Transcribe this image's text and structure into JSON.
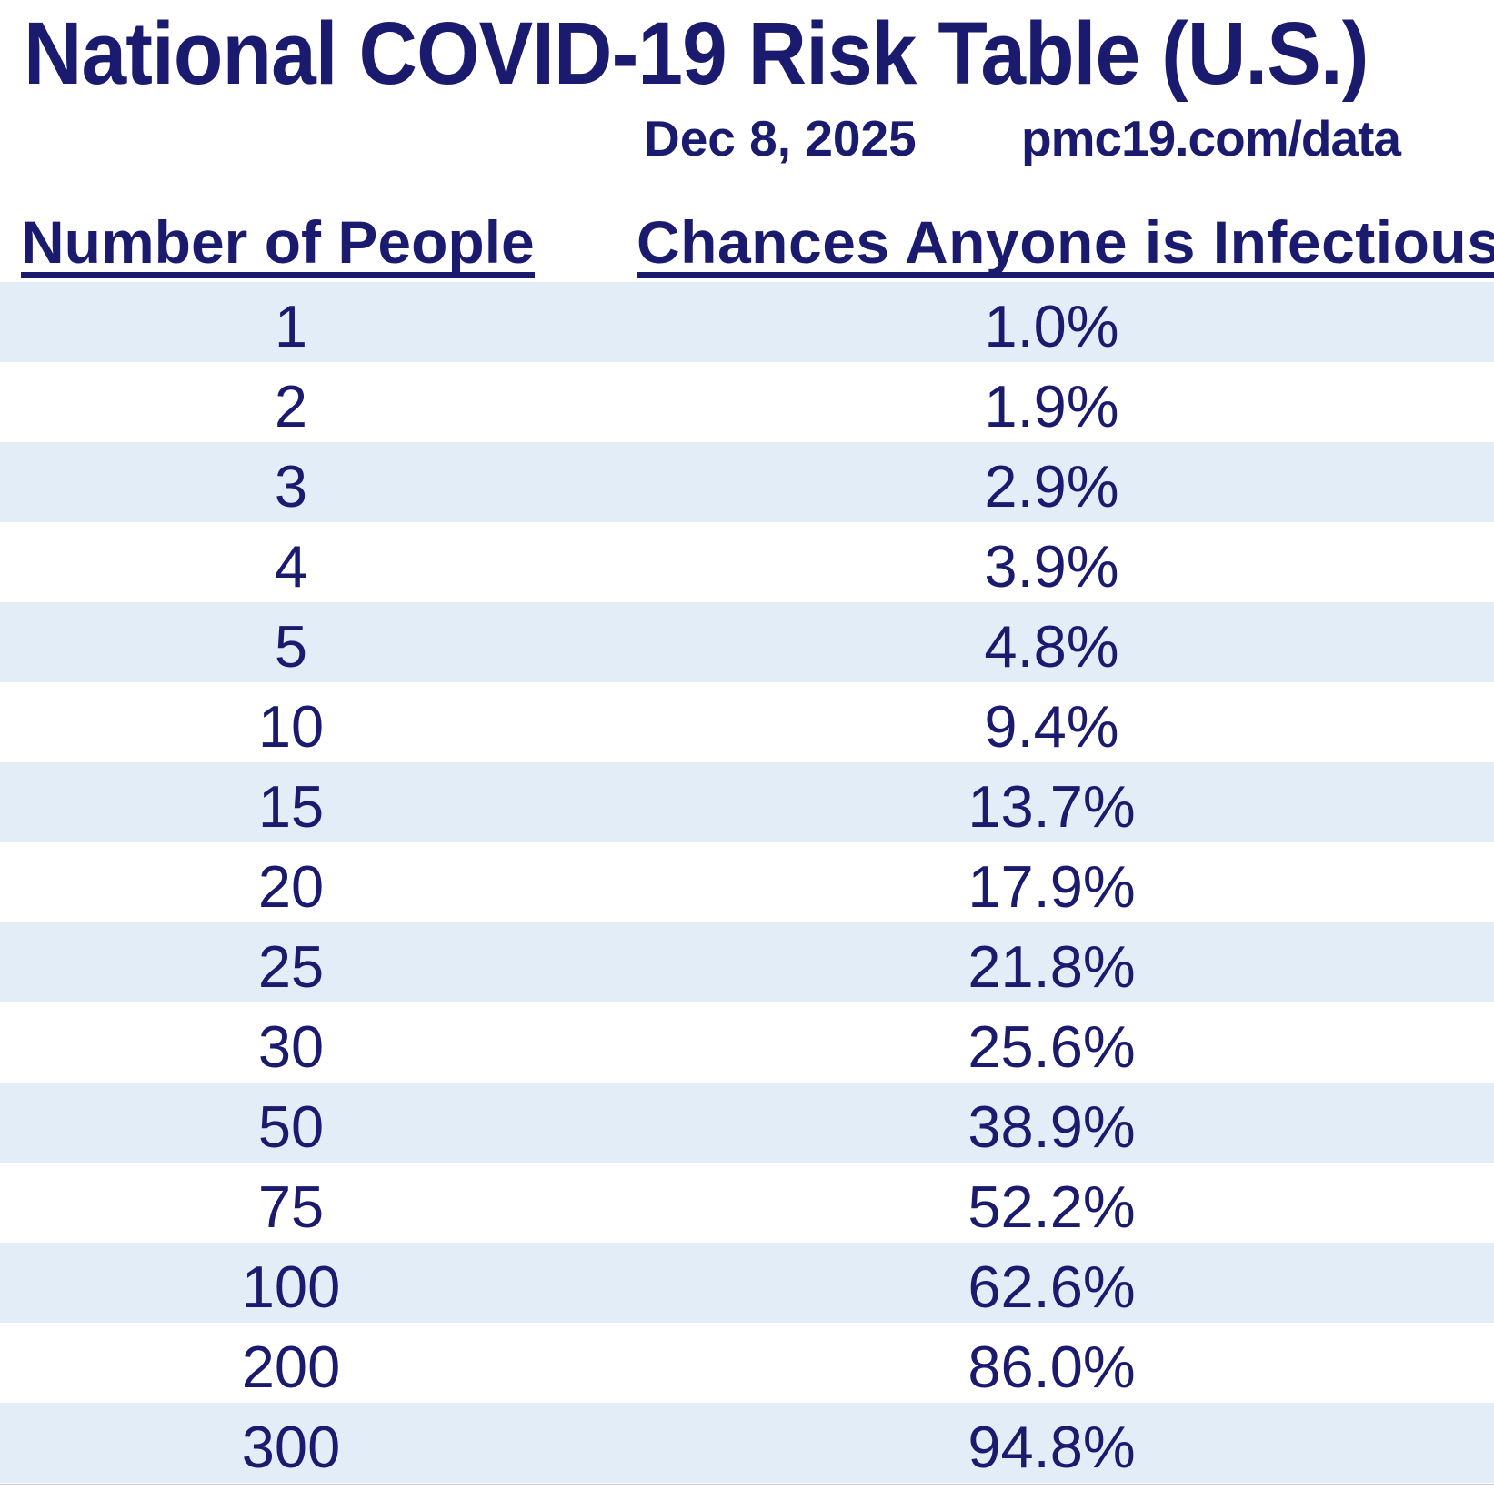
{
  "header": {
    "title": "National COVID-19 Risk Table (U.S.)",
    "date": "Dec 8, 2025",
    "source": "pmc19.com/data"
  },
  "table": {
    "columns": {
      "people_label": "Number of People",
      "chance_label": "Chances Anyone is Infectious"
    },
    "rows": [
      {
        "people": "1",
        "chance": "1.0%"
      },
      {
        "people": "2",
        "chance": "1.9%"
      },
      {
        "people": "3",
        "chance": "2.9%"
      },
      {
        "people": "4",
        "chance": "3.9%"
      },
      {
        "people": "5",
        "chance": "4.8%"
      },
      {
        "people": "10",
        "chance": "9.4%"
      },
      {
        "people": "15",
        "chance": "13.7%"
      },
      {
        "people": "20",
        "chance": "17.9%"
      },
      {
        "people": "25",
        "chance": "21.8%"
      },
      {
        "people": "30",
        "chance": "25.6%"
      },
      {
        "people": "50",
        "chance": "38.9%"
      },
      {
        "people": "75",
        "chance": "52.2%"
      },
      {
        "people": "100",
        "chance": "62.6%"
      },
      {
        "people": "200",
        "chance": "86.0%"
      },
      {
        "people": "300",
        "chance": "94.8%"
      }
    ]
  },
  "colors": {
    "navy_text": "#1a1a6e",
    "row_alternate_blue": "#e3edf8",
    "row_white": "#ffffff",
    "bottom_rule_gray": "#cccccc"
  },
  "chart_data": {
    "type": "table",
    "title": "National COVID-19 Risk Table (U.S.)",
    "date": "Dec 8, 2025",
    "source": "pmc19.com/data",
    "columns": [
      "Number of People",
      "Chances Anyone is Infectious"
    ],
    "number_of_people": [
      1,
      2,
      3,
      4,
      5,
      10,
      15,
      20,
      25,
      30,
      50,
      75,
      100,
      200,
      300
    ],
    "chance_anyone_infectious_percent": [
      1.0,
      1.9,
      2.9,
      3.9,
      4.8,
      9.4,
      13.7,
      17.9,
      21.8,
      25.6,
      38.9,
      52.2,
      62.6,
      86.0,
      94.8
    ],
    "layout": "two-column data table, rows alternate light blue and white, header labels underlined"
  }
}
